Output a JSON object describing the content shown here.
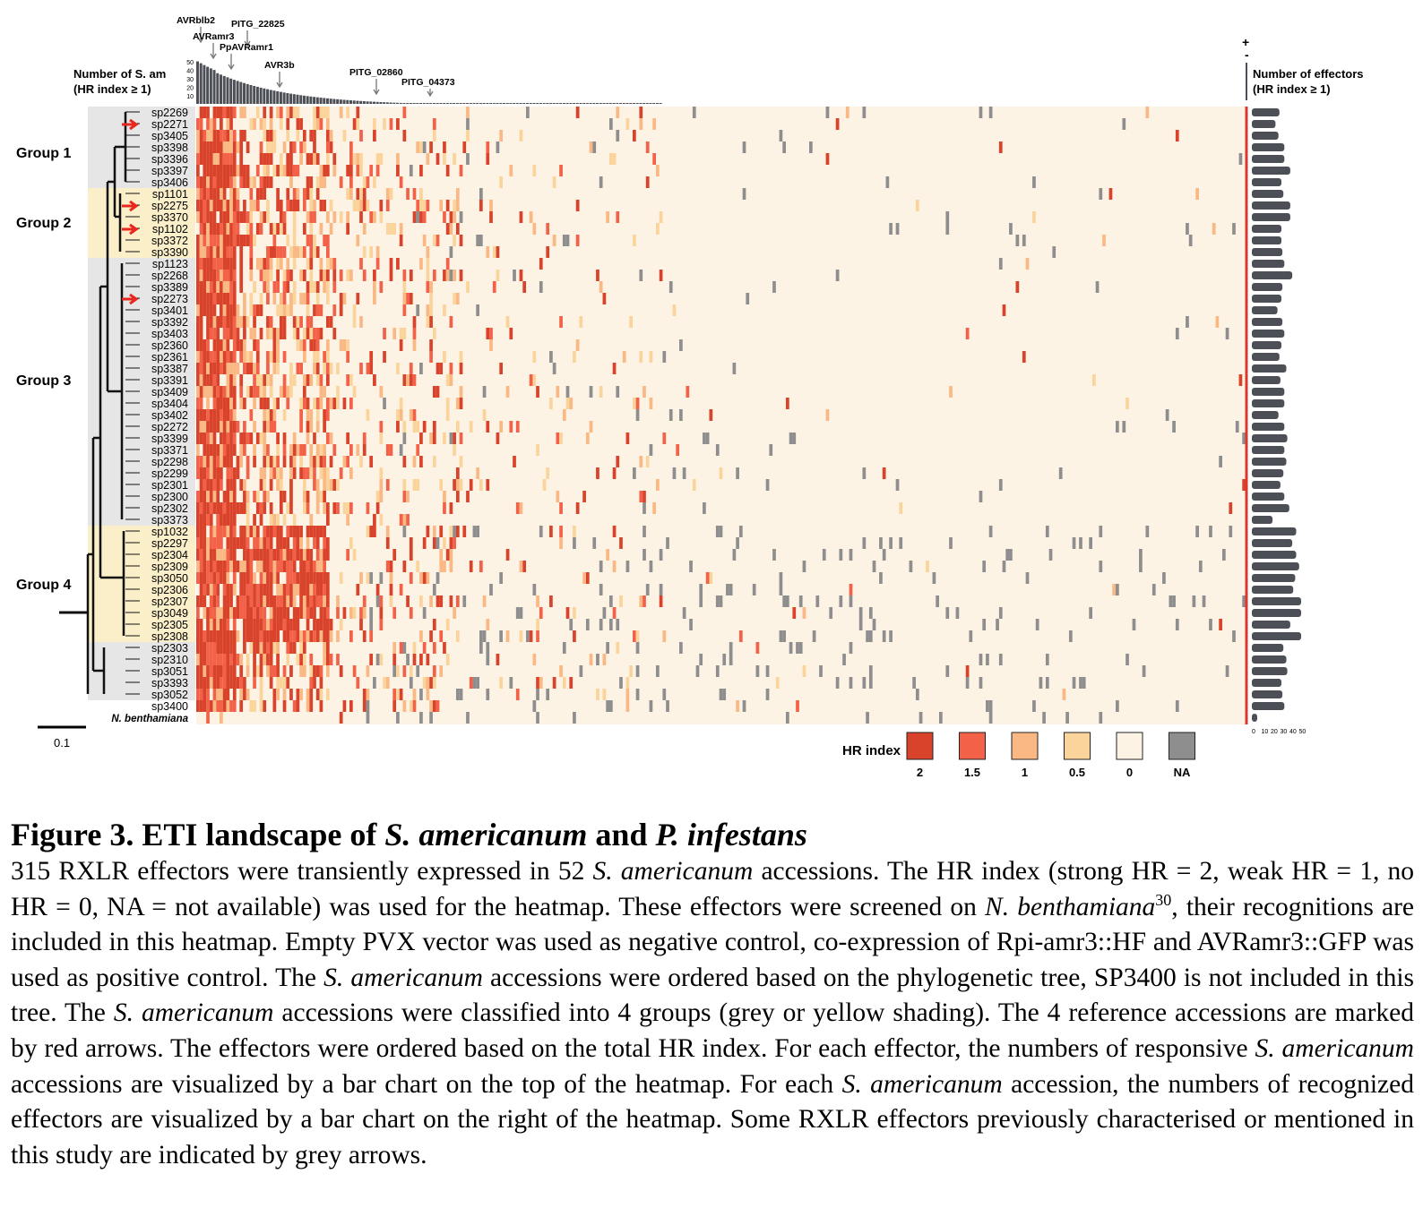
{
  "figure": {
    "top_bar_axis_label_line1": "Number of S. am",
    "top_bar_axis_label_line2": "(HR index ≥ 1)",
    "top_bar_ticks": [
      "50",
      "40",
      "30",
      "20",
      "10"
    ],
    "right_bar_axis_label_line1": "Number of effectors",
    "right_bar_axis_label_line2": "(HR index ≥ 1)",
    "right_bar_ticks": [
      "0",
      "10",
      "20",
      "30",
      "40",
      "50"
    ],
    "plus_sign": "+",
    "minus_sign": "-",
    "effector_labels": [
      "AVRblb2",
      "AVRamr3",
      "PITG_22825",
      "PpAVRamr1",
      "AVR3b",
      "PITG_02860",
      "PITG_04373"
    ],
    "groups": [
      "Group 1",
      "Group 2",
      "Group 3",
      "Group 4"
    ],
    "accessions": [
      "sp2269",
      "sp2271",
      "sp3405",
      "sp3398",
      "sp3396",
      "sp3397",
      "sp3406",
      "sp1101",
      "sp2275",
      "sp3370",
      "sp1102",
      "sp3372",
      "sp3390",
      "sp1123",
      "sp2268",
      "sp3389",
      "sp2273",
      "sp3401",
      "sp3392",
      "sp3403",
      "sp2360",
      "sp2361",
      "sp3387",
      "sp3391",
      "sp3409",
      "sp3404",
      "sp3402",
      "sp2272",
      "sp3399",
      "sp3371",
      "sp2298",
      "sp2299",
      "sp2301",
      "sp2300",
      "sp2302",
      "sp3373",
      "sp1032",
      "sp2297",
      "sp2304",
      "sp2309",
      "sp3050",
      "sp2306",
      "sp2307",
      "sp3049",
      "sp2305",
      "sp2308",
      "sp2303",
      "sp2310",
      "sp3051",
      "sp3393",
      "sp3052",
      "sp3400",
      "N. benthamiana"
    ],
    "tree_scale_label": "0.1",
    "legend_title": "HR index",
    "legend": [
      {
        "label": "2",
        "color": "#d9432b"
      },
      {
        "label": "1.5",
        "color": "#f26148"
      },
      {
        "label": "1",
        "color": "#f9b884"
      },
      {
        "label": "0.5",
        "color": "#fbd49b"
      },
      {
        "label": "0",
        "color": "#fdf3e5"
      },
      {
        "label": "NA",
        "color": "#8e8e8e"
      }
    ],
    "colors": {
      "background": "#fdf3e5",
      "na": "#8e8e8e",
      "bar": "#4c4f55",
      "divider": "#e0352b",
      "arrow": "#e8281e",
      "group_grey": "#e6e6e6",
      "group_yellow": "#fbefc9"
    }
  },
  "caption": {
    "title_part1": "Figure 3. ETI landscape of ",
    "title_italic1": "S. americanum",
    "title_part2": " and ",
    "title_italic2": "P. infestans",
    "p1": "315 RXLR effectors were transiently expressed in 52 ",
    "i1": "S. americanum",
    "p2": " accessions. The HR index (strong HR = 2, weak HR = 1, no HR = 0, NA = not available) was used for the heatmap. These effectors were screened on ",
    "i2": "N. benthamiana",
    "sup1": "30",
    "p3": ", their recognitions are included in this heatmap. Empty PVX vector was used as negative control, co-expression of Rpi-amr3::HF and AVRamr3::GFP was used as positive control. The ",
    "i3": "S. americanum",
    "p4": " accessions were ordered based on the phylogenetic tree, SP3400 is not included in this tree. The ",
    "i4": "S. americanum",
    "p5": " accessions were classified into 4 groups (grey or yellow shading). The 4 reference accessions are marked by red arrows. The effectors were ordered based on the total HR index. For each effector, the numbers of responsive ",
    "i5": "S. americanum",
    "p6": " accessions are visualized by a bar chart on the top of the heatmap.  For each ",
    "i6": "S. americanum",
    "p7": " accession, the numbers of recognized effectors are visualized by a bar chart on the right of the heatmap. Some RXLR effectors previously characterised or mentioned in this study are indicated by grey arrows."
  }
}
